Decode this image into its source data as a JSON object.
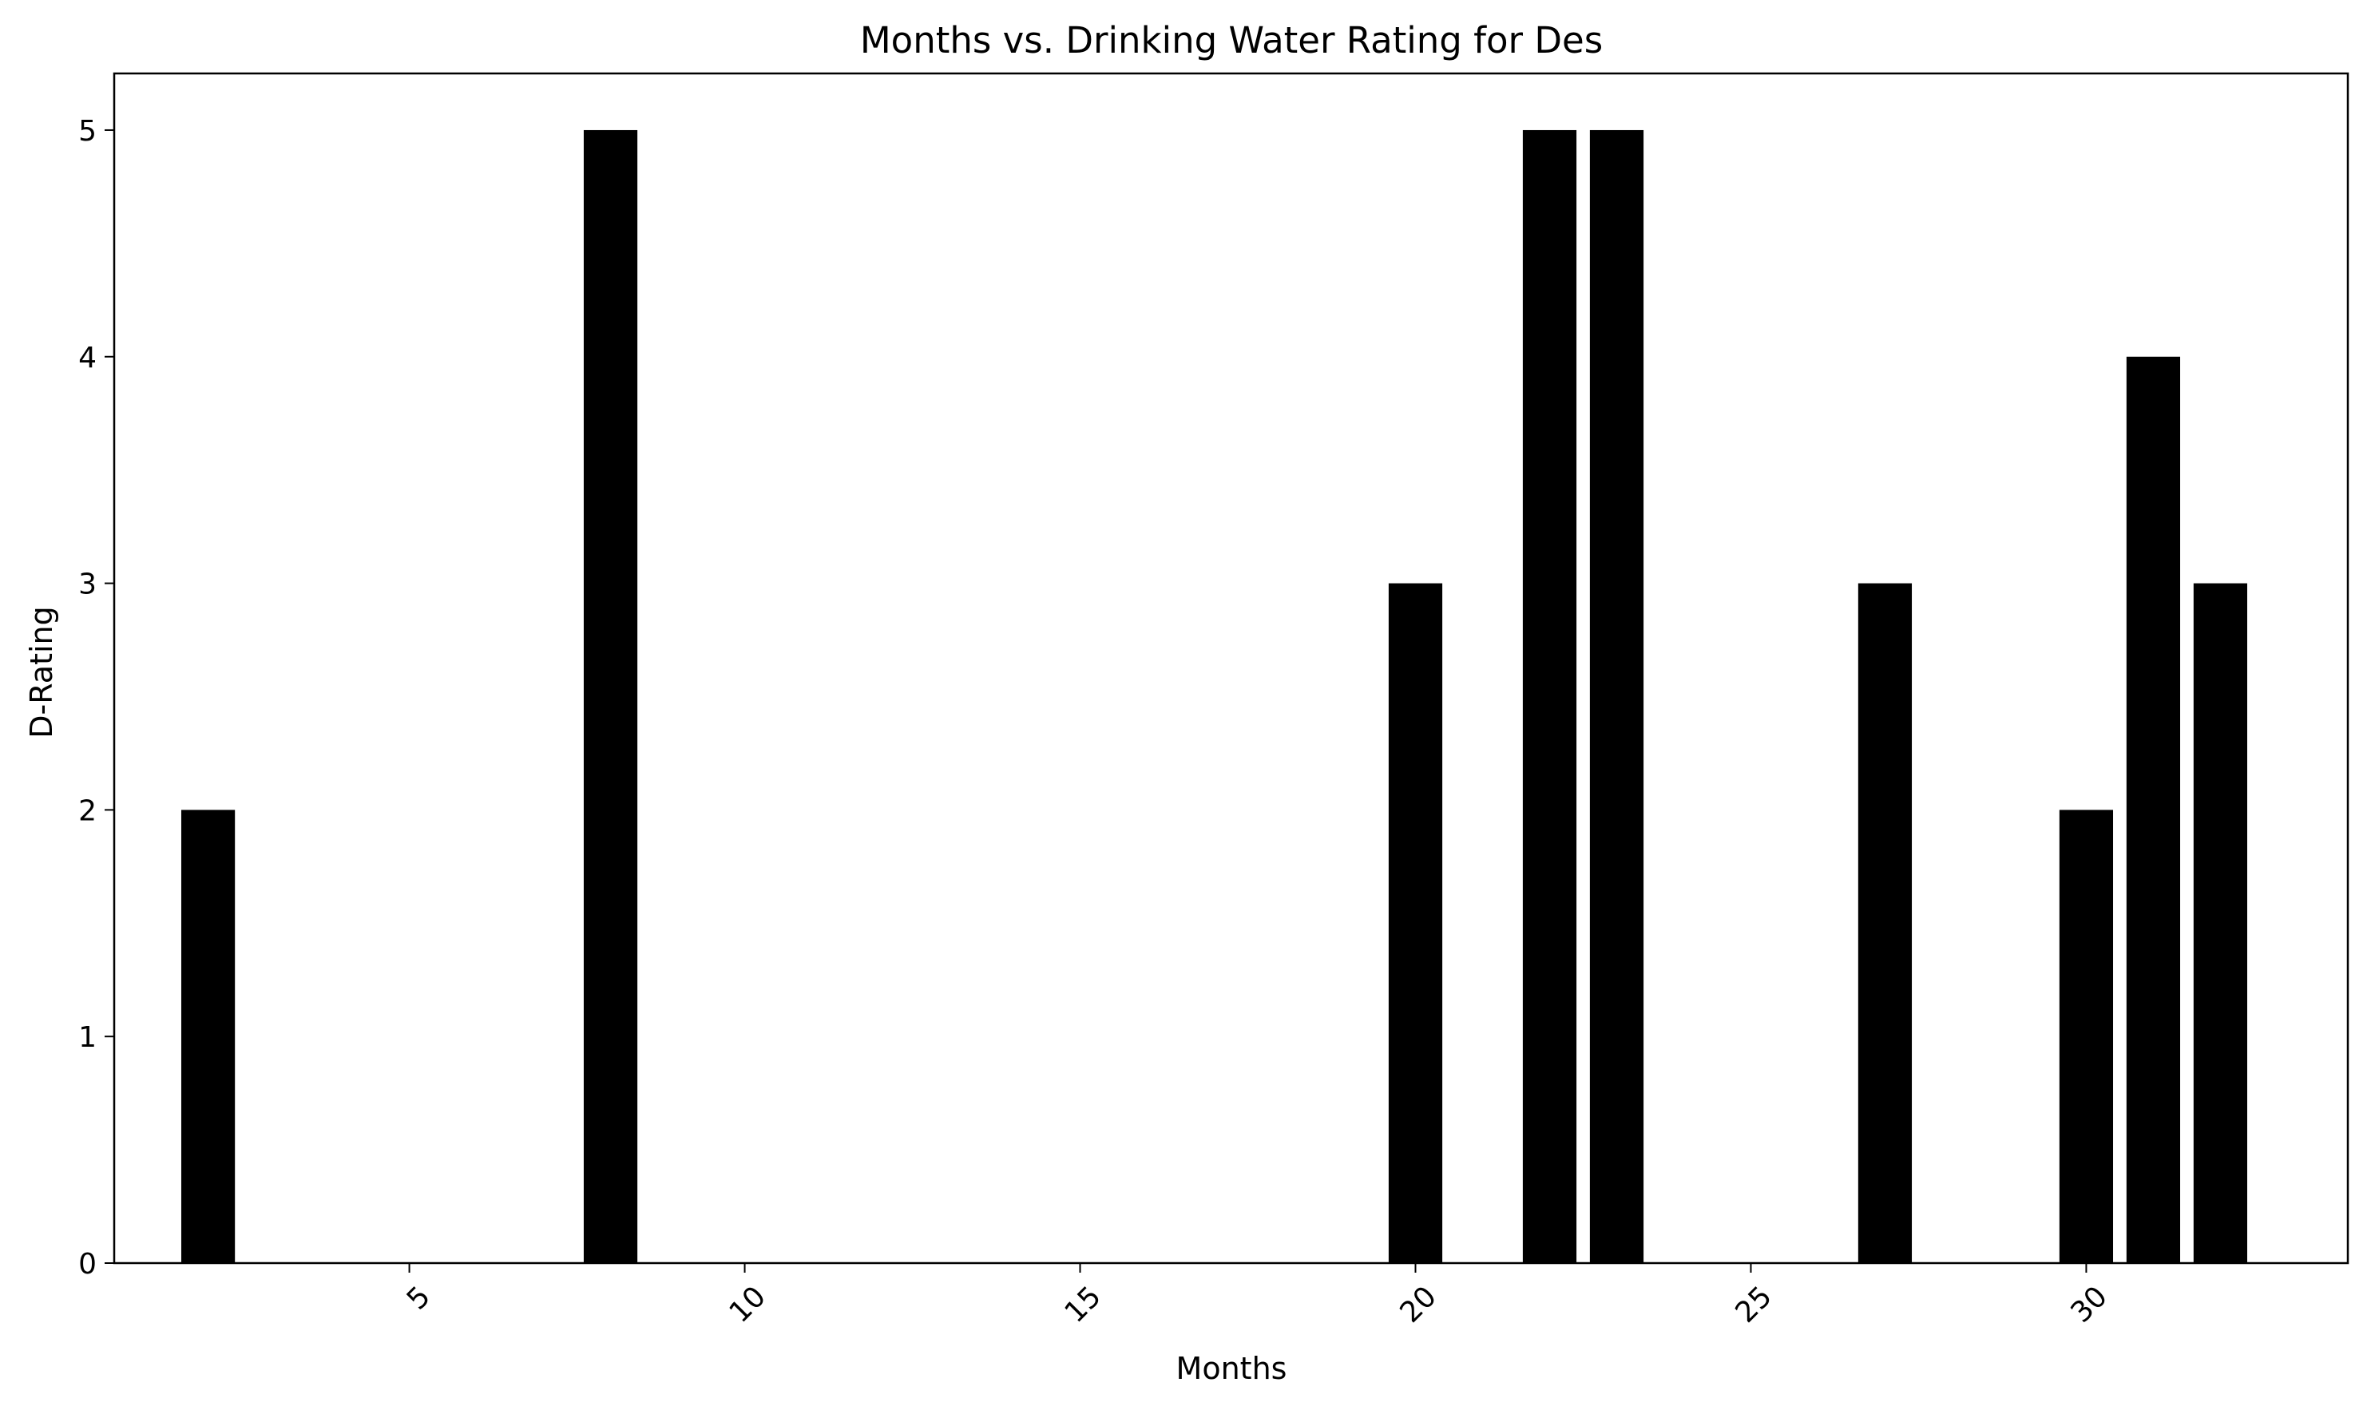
{
  "chart_data": {
    "type": "bar",
    "title": "Months vs. Drinking Water Rating for Des",
    "xlabel": "Months",
    "ylabel": "D-Rating",
    "x": [
      2,
      8,
      20,
      22,
      23,
      27,
      30,
      31,
      32
    ],
    "values": [
      2,
      5,
      3,
      5,
      5,
      3,
      2,
      4,
      3
    ],
    "xlim": [
      0.6,
      33.9
    ],
    "ylim": [
      0,
      5.25
    ],
    "xticks": [
      5,
      10,
      15,
      20,
      25,
      30
    ],
    "yticks": [
      0,
      1,
      2,
      3,
      4,
      5
    ],
    "xtick_rotation": 45,
    "bar_width": 0.8,
    "bar_color": "#000000",
    "grid": false,
    "legend": "none"
  }
}
